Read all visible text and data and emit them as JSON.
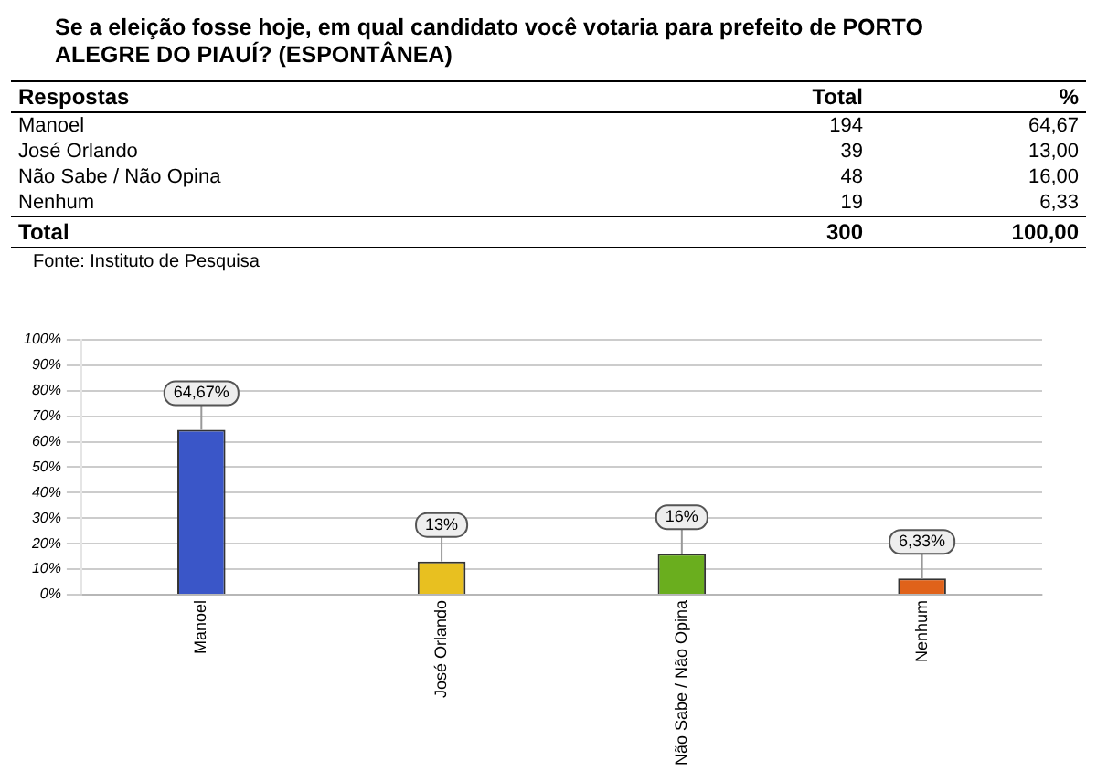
{
  "chart_data": [
    {
      "type": "other",
      "title": "Se a eleição fosse hoje, em qual candidato você votaria para prefeito de PORTO ALEGRE DO PIAUÍ? (ESPONTÂNEA)",
      "annotations": [
        "Respostas",
        "Total",
        "%",
        "Manoel",
        "194",
        "64,67",
        "José Orlando",
        "39",
        "13,00",
        "Não Sabe / Não Opina",
        "48",
        "16,00",
        "Nenhum",
        "19",
        "6,33",
        "Total",
        "300",
        "100,00",
        "Fonte: Instituto de Pesquisa"
      ]
    },
    {
      "type": "bar",
      "categories": [
        "Manoel",
        "José Orlando",
        "Não Sabe / Não Opina",
        "Nenhum"
      ],
      "values": [
        64.67,
        13,
        16,
        6.33
      ],
      "colors": [
        "#3a56c8",
        "#e8c020",
        "#6aae1e",
        "#e0621a"
      ],
      "value_labels": [
        "64,67%",
        "13%",
        "16%",
        "6,33%"
      ],
      "ylim": [
        0,
        100
      ],
      "yticks": [
        {
          "value": 0,
          "label": "0%"
        },
        {
          "value": 10,
          "label": "10%"
        },
        {
          "value": 20,
          "label": "20%"
        },
        {
          "value": 30,
          "label": "30%"
        },
        {
          "value": 40,
          "label": "40%"
        },
        {
          "value": 50,
          "label": "50%"
        },
        {
          "value": 60,
          "label": "60%"
        },
        {
          "value": 70,
          "label": "70%"
        },
        {
          "value": 80,
          "label": "80%"
        },
        {
          "value": 90,
          "label": "90%"
        },
        {
          "value": 100,
          "label": "100%"
        }
      ],
      "grid": "y",
      "legend": false
    }
  ]
}
